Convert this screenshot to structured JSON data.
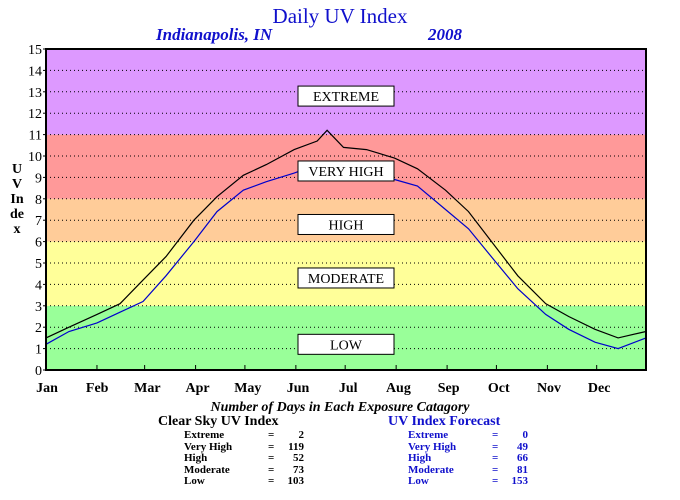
{
  "title": "Daily UV Index",
  "location": "Indianapolis, IN",
  "year": "2008",
  "y_axis_label": "UV Index",
  "stats_title": "Number of Days in Each Exposure Catagory",
  "clear_sky": {
    "heading": "Clear Sky UV Index",
    "rows": [
      {
        "label": "Extreme",
        "value": "2"
      },
      {
        "label": "Very High",
        "value": "119"
      },
      {
        "label": "High",
        "value": "52"
      },
      {
        "label": "Moderate",
        "value": "73"
      },
      {
        "label": "Low",
        "value": "103"
      }
    ]
  },
  "forecast": {
    "heading": "UV Index Forecast",
    "rows": [
      {
        "label": "Extreme",
        "value": "0"
      },
      {
        "label": "Very High",
        "value": "49"
      },
      {
        "label": "High",
        "value": "66"
      },
      {
        "label": "Moderate",
        "value": "81"
      },
      {
        "label": "Low",
        "value": "153"
      }
    ]
  },
  "colors": {
    "low": "#99ff99",
    "moderate": "#ffff99",
    "high": "#ffcc99",
    "very_high": "#ff9999",
    "extreme": "#dd99ff",
    "clear_sky_line": "#000000",
    "forecast_line": "#0000cc",
    "title_blue": "#1010cc"
  },
  "chart_data": {
    "type": "line",
    "title": "Daily UV Index",
    "ylabel": "UV Index",
    "ylim": [
      0,
      15
    ],
    "yticks": [
      0,
      1,
      2,
      3,
      4,
      5,
      6,
      7,
      8,
      9,
      10,
      11,
      12,
      13,
      14,
      15
    ],
    "months": [
      "Jan",
      "Feb",
      "Mar",
      "Apr",
      "May",
      "Jun",
      "Jul",
      "Aug",
      "Sep",
      "Oct",
      "Nov",
      "Dec"
    ],
    "grid": "horizontal dotted",
    "bands": [
      {
        "name": "LOW",
        "from": 0,
        "to": 3,
        "color": "#99ff99"
      },
      {
        "name": "MODERATE",
        "from": 3,
        "to": 6,
        "color": "#ffff99"
      },
      {
        "name": "HIGH",
        "from": 6,
        "to": 8,
        "color": "#ffcc99"
      },
      {
        "name": "VERY HIGH",
        "from": 8,
        "to": 11,
        "color": "#ff9999"
      },
      {
        "name": "EXTREME",
        "from": 11,
        "to": 15,
        "color": "#dd99ff"
      }
    ],
    "band_labels": [
      {
        "text": "EXTREME",
        "y": 12.8
      },
      {
        "text": "VERY HIGH",
        "y": 9.3
      },
      {
        "text": "HIGH",
        "y": 6.8
      },
      {
        "text": "MODERATE",
        "y": 4.3
      },
      {
        "text": "LOW",
        "y": 1.2
      }
    ],
    "series": [
      {
        "name": "Clear Sky UV Index",
        "color": "#000000",
        "x": [
          1,
          15,
          32,
          46,
          60,
          74,
          91,
          105,
          121,
          135,
          152,
          166,
          172,
          182,
          196,
          213,
          227,
          244,
          258,
          274,
          288,
          305,
          319,
          335,
          349,
          366
        ],
        "values": [
          1.5,
          2.0,
          2.6,
          3.1,
          4.2,
          5.3,
          7.0,
          8.1,
          9.1,
          9.6,
          10.3,
          10.7,
          11.2,
          10.4,
          10.3,
          9.9,
          9.4,
          8.4,
          7.4,
          5.8,
          4.4,
          3.1,
          2.5,
          1.9,
          1.5,
          1.8
        ]
      },
      {
        "name": "UV Index Forecast",
        "color": "#0000cc",
        "x": [
          1,
          15,
          32,
          46,
          60,
          74,
          91,
          105,
          121,
          135,
          152,
          166,
          172,
          182,
          196,
          213,
          227,
          244,
          258,
          274,
          288,
          305,
          319,
          335,
          349,
          366
        ],
        "values": [
          1.2,
          1.8,
          2.2,
          2.7,
          3.2,
          4.4,
          6.0,
          7.4,
          8.4,
          8.8,
          9.2,
          9.6,
          9.5,
          9.1,
          9.3,
          8.9,
          8.6,
          7.5,
          6.6,
          5.1,
          3.8,
          2.6,
          1.9,
          1.3,
          1.0,
          1.5
        ]
      }
    ]
  }
}
